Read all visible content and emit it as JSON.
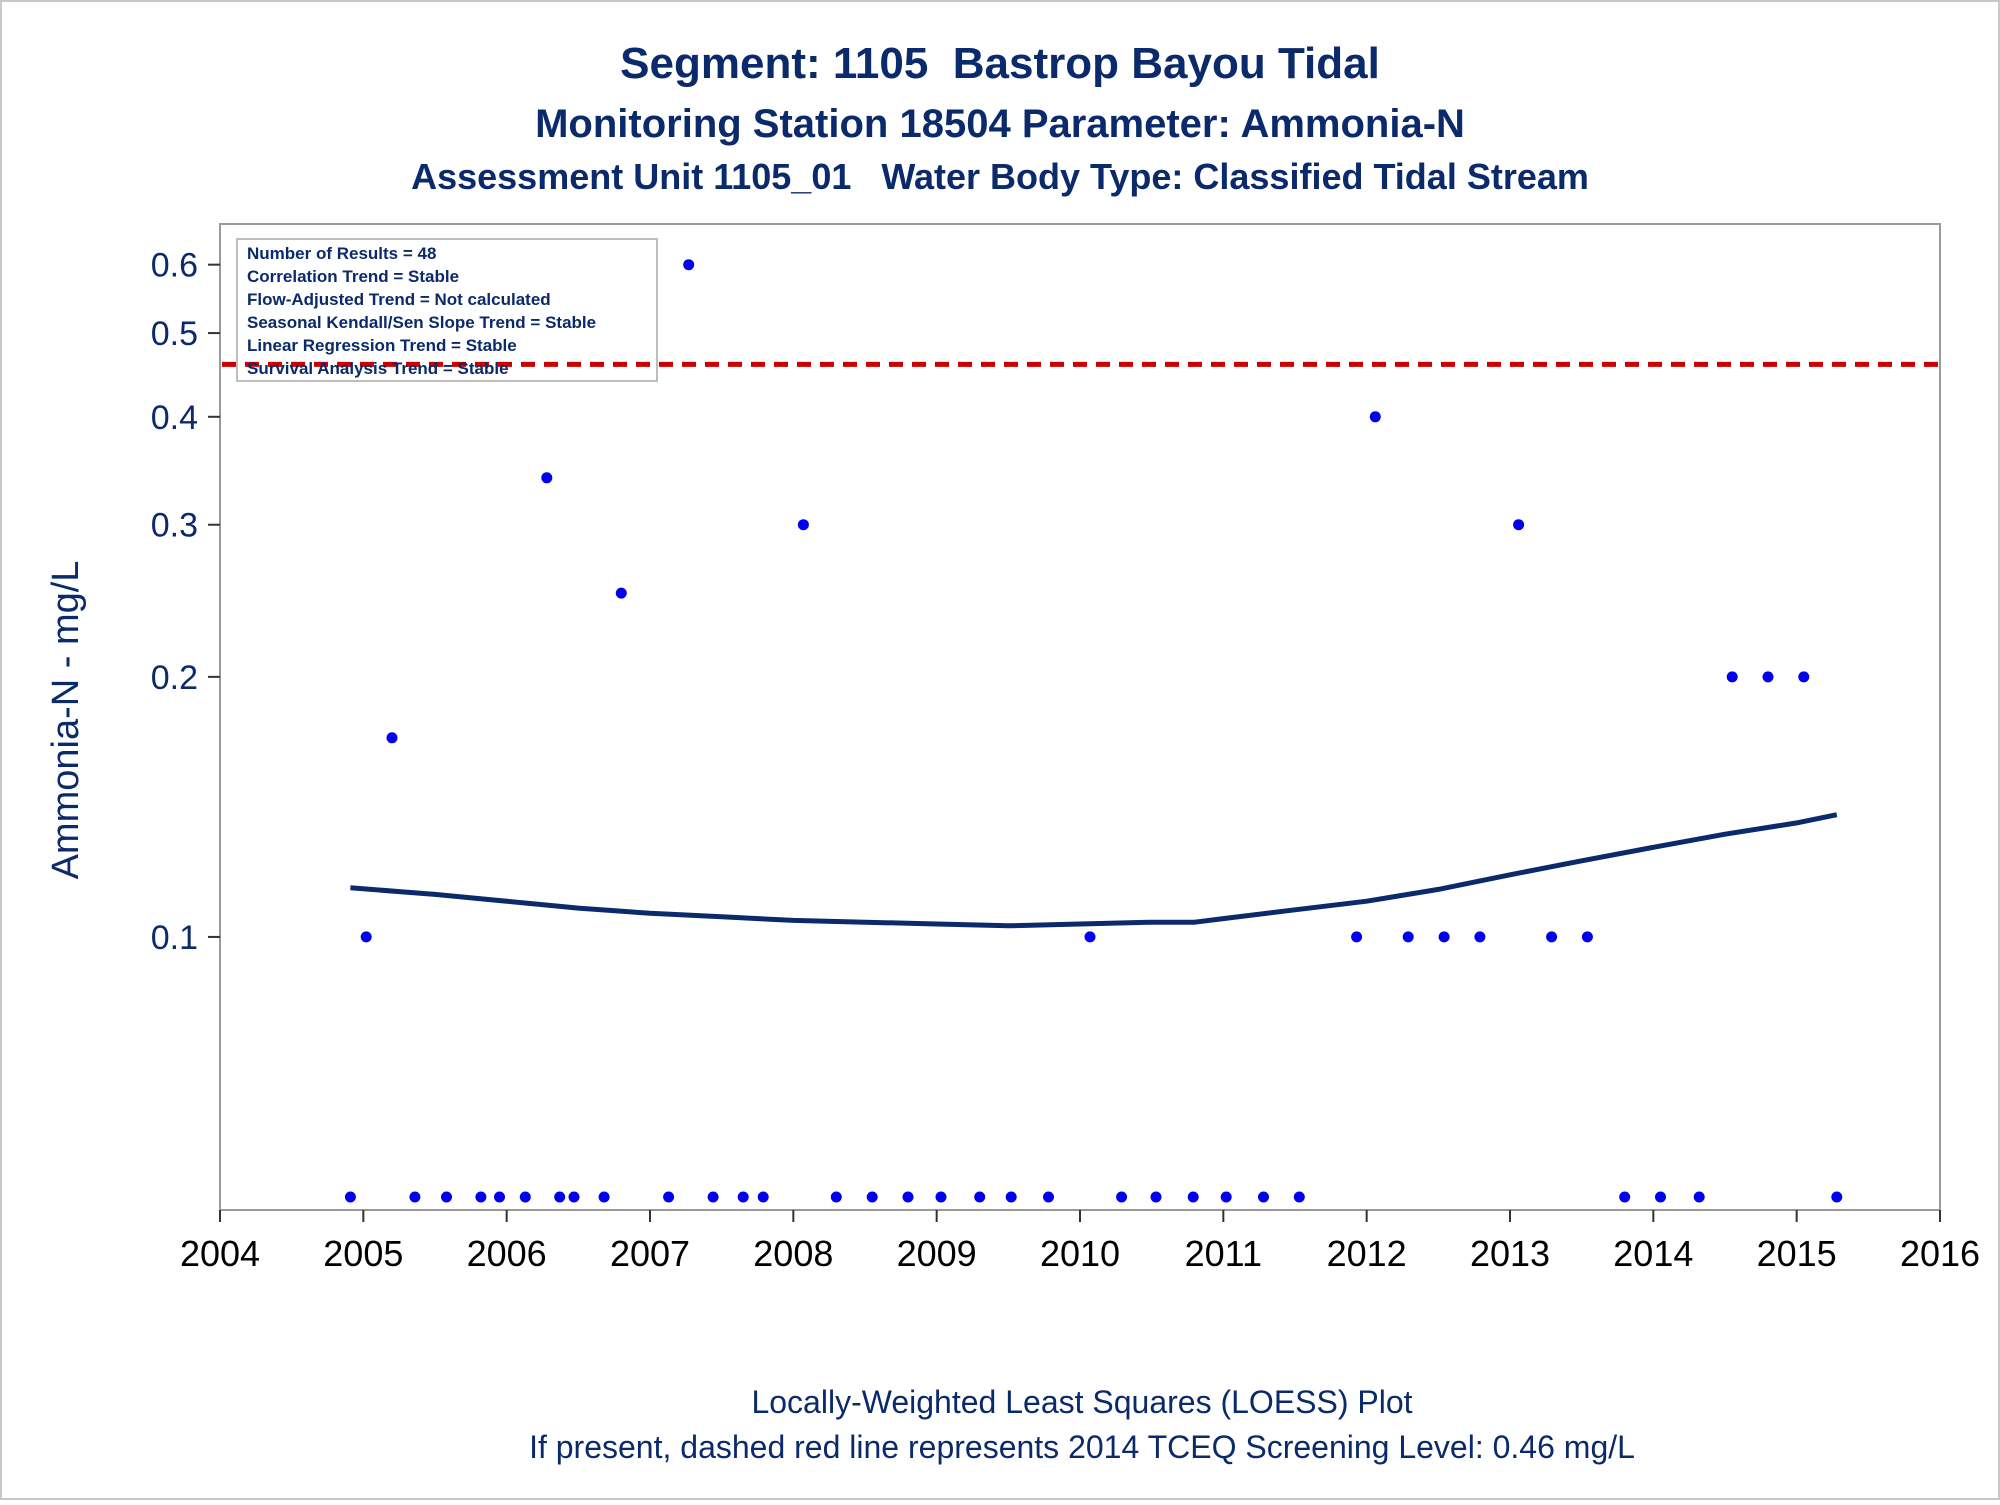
{
  "chart_data": {
    "type": "scatter",
    "title": "Segment: 1105  Bastrop Bayou Tidal",
    "subtitle_1": "Monitoring Station 18504 Parameter: Ammonia-N",
    "subtitle_2": "Assessment Unit 1105_01   Water Body Type: Classified Tidal Stream",
    "xlabel": "",
    "ylabel": "Ammonia-N - mg/L",
    "footnote_1": "Locally-Weighted Least Squares (LOESS) Plot",
    "footnote_2": "If present, dashed red line represents 2014 TCEQ Screening Level: 0.46 mg/L",
    "y_scale": "log",
    "xlim": [
      2004,
      2016
    ],
    "ylim": [
      0.05,
      0.62
    ],
    "x_ticks": [
      2004,
      2005,
      2006,
      2007,
      2008,
      2009,
      2010,
      2011,
      2012,
      2013,
      2014,
      2015,
      2016
    ],
    "x_tick_labels": [
      "2004",
      "2005",
      "2006",
      "2007",
      "2008",
      "2009",
      "2010",
      "2011",
      "2012",
      "2013",
      "2014",
      "2015",
      "2016"
    ],
    "y_ticks": [
      0.1,
      0.2,
      0.3,
      0.4,
      0.5,
      0.6
    ],
    "y_tick_labels": [
      "0.1",
      "0.2",
      "0.3",
      "0.4",
      "0.5",
      "0.6"
    ],
    "grid": false,
    "legend_placement": "top-left",
    "stats_box": [
      "Number of Results = 48",
      "Correlation Trend = Stable",
      "Flow-Adjusted Trend = Not calculated",
      "Seasonal Kendall/Sen Slope Trend = Stable",
      "Linear Regression Trend = Stable",
      "Survival Analysis Trend = Stable"
    ],
    "screening_level": 0.46,
    "colors": {
      "text": "#0b2a6b",
      "points": "#0000ee",
      "loess": "#0b2a6b",
      "screening_line": "#cc0000",
      "frame": "#9a9a9a"
    },
    "points": [
      {
        "x": 2004.91,
        "y": 0.05
      },
      {
        "x": 2005.02,
        "y": 0.1
      },
      {
        "x": 2005.2,
        "y": 0.17
      },
      {
        "x": 2005.36,
        "y": 0.05
      },
      {
        "x": 2005.58,
        "y": 0.05
      },
      {
        "x": 2005.82,
        "y": 0.05
      },
      {
        "x": 2005.95,
        "y": 0.05
      },
      {
        "x": 2006.13,
        "y": 0.05
      },
      {
        "x": 2006.28,
        "y": 0.34
      },
      {
        "x": 2006.37,
        "y": 0.05
      },
      {
        "x": 2006.47,
        "y": 0.05
      },
      {
        "x": 2006.68,
        "y": 0.05
      },
      {
        "x": 2006.8,
        "y": 0.25
      },
      {
        "x": 2007.13,
        "y": 0.05
      },
      {
        "x": 2007.27,
        "y": 0.6
      },
      {
        "x": 2007.44,
        "y": 0.05
      },
      {
        "x": 2007.65,
        "y": 0.05
      },
      {
        "x": 2007.79,
        "y": 0.05
      },
      {
        "x": 2008.07,
        "y": 0.3
      },
      {
        "x": 2008.3,
        "y": 0.05
      },
      {
        "x": 2008.55,
        "y": 0.05
      },
      {
        "x": 2008.8,
        "y": 0.05
      },
      {
        "x": 2009.03,
        "y": 0.05
      },
      {
        "x": 2009.3,
        "y": 0.05
      },
      {
        "x": 2009.52,
        "y": 0.05
      },
      {
        "x": 2009.78,
        "y": 0.05
      },
      {
        "x": 2010.07,
        "y": 0.1
      },
      {
        "x": 2010.29,
        "y": 0.05
      },
      {
        "x": 2010.53,
        "y": 0.05
      },
      {
        "x": 2010.79,
        "y": 0.05
      },
      {
        "x": 2011.02,
        "y": 0.05
      },
      {
        "x": 2011.28,
        "y": 0.05
      },
      {
        "x": 2011.53,
        "y": 0.05
      },
      {
        "x": 2011.93,
        "y": 0.1
      },
      {
        "x": 2012.06,
        "y": 0.4
      },
      {
        "x": 2012.29,
        "y": 0.1
      },
      {
        "x": 2012.54,
        "y": 0.1
      },
      {
        "x": 2012.79,
        "y": 0.1
      },
      {
        "x": 2013.06,
        "y": 0.3
      },
      {
        "x": 2013.29,
        "y": 0.1
      },
      {
        "x": 2013.54,
        "y": 0.1
      },
      {
        "x": 2013.8,
        "y": 0.05
      },
      {
        "x": 2014.05,
        "y": 0.05
      },
      {
        "x": 2014.32,
        "y": 0.05
      },
      {
        "x": 2014.55,
        "y": 0.2
      },
      {
        "x": 2014.8,
        "y": 0.2
      },
      {
        "x": 2015.05,
        "y": 0.2
      },
      {
        "x": 2015.28,
        "y": 0.05
      }
    ],
    "loess": [
      {
        "x": 2004.91,
        "y": 0.114
      },
      {
        "x": 2005.5,
        "y": 0.112
      },
      {
        "x": 2006.0,
        "y": 0.11
      },
      {
        "x": 2006.5,
        "y": 0.108
      },
      {
        "x": 2007.0,
        "y": 0.1065
      },
      {
        "x": 2007.5,
        "y": 0.1055
      },
      {
        "x": 2008.0,
        "y": 0.1045
      },
      {
        "x": 2008.5,
        "y": 0.104
      },
      {
        "x": 2009.0,
        "y": 0.1035
      },
      {
        "x": 2009.5,
        "y": 0.103
      },
      {
        "x": 2010.0,
        "y": 0.1035
      },
      {
        "x": 2010.5,
        "y": 0.104
      },
      {
        "x": 2010.8,
        "y": 0.104
      },
      {
        "x": 2011.0,
        "y": 0.105
      },
      {
        "x": 2011.5,
        "y": 0.1075
      },
      {
        "x": 2012.0,
        "y": 0.11
      },
      {
        "x": 2012.5,
        "y": 0.1135
      },
      {
        "x": 2013.0,
        "y": 0.118
      },
      {
        "x": 2013.5,
        "y": 0.1225
      },
      {
        "x": 2014.0,
        "y": 0.127
      },
      {
        "x": 2014.5,
        "y": 0.1315
      },
      {
        "x": 2015.0,
        "y": 0.1355
      },
      {
        "x": 2015.28,
        "y": 0.1385
      }
    ]
  }
}
